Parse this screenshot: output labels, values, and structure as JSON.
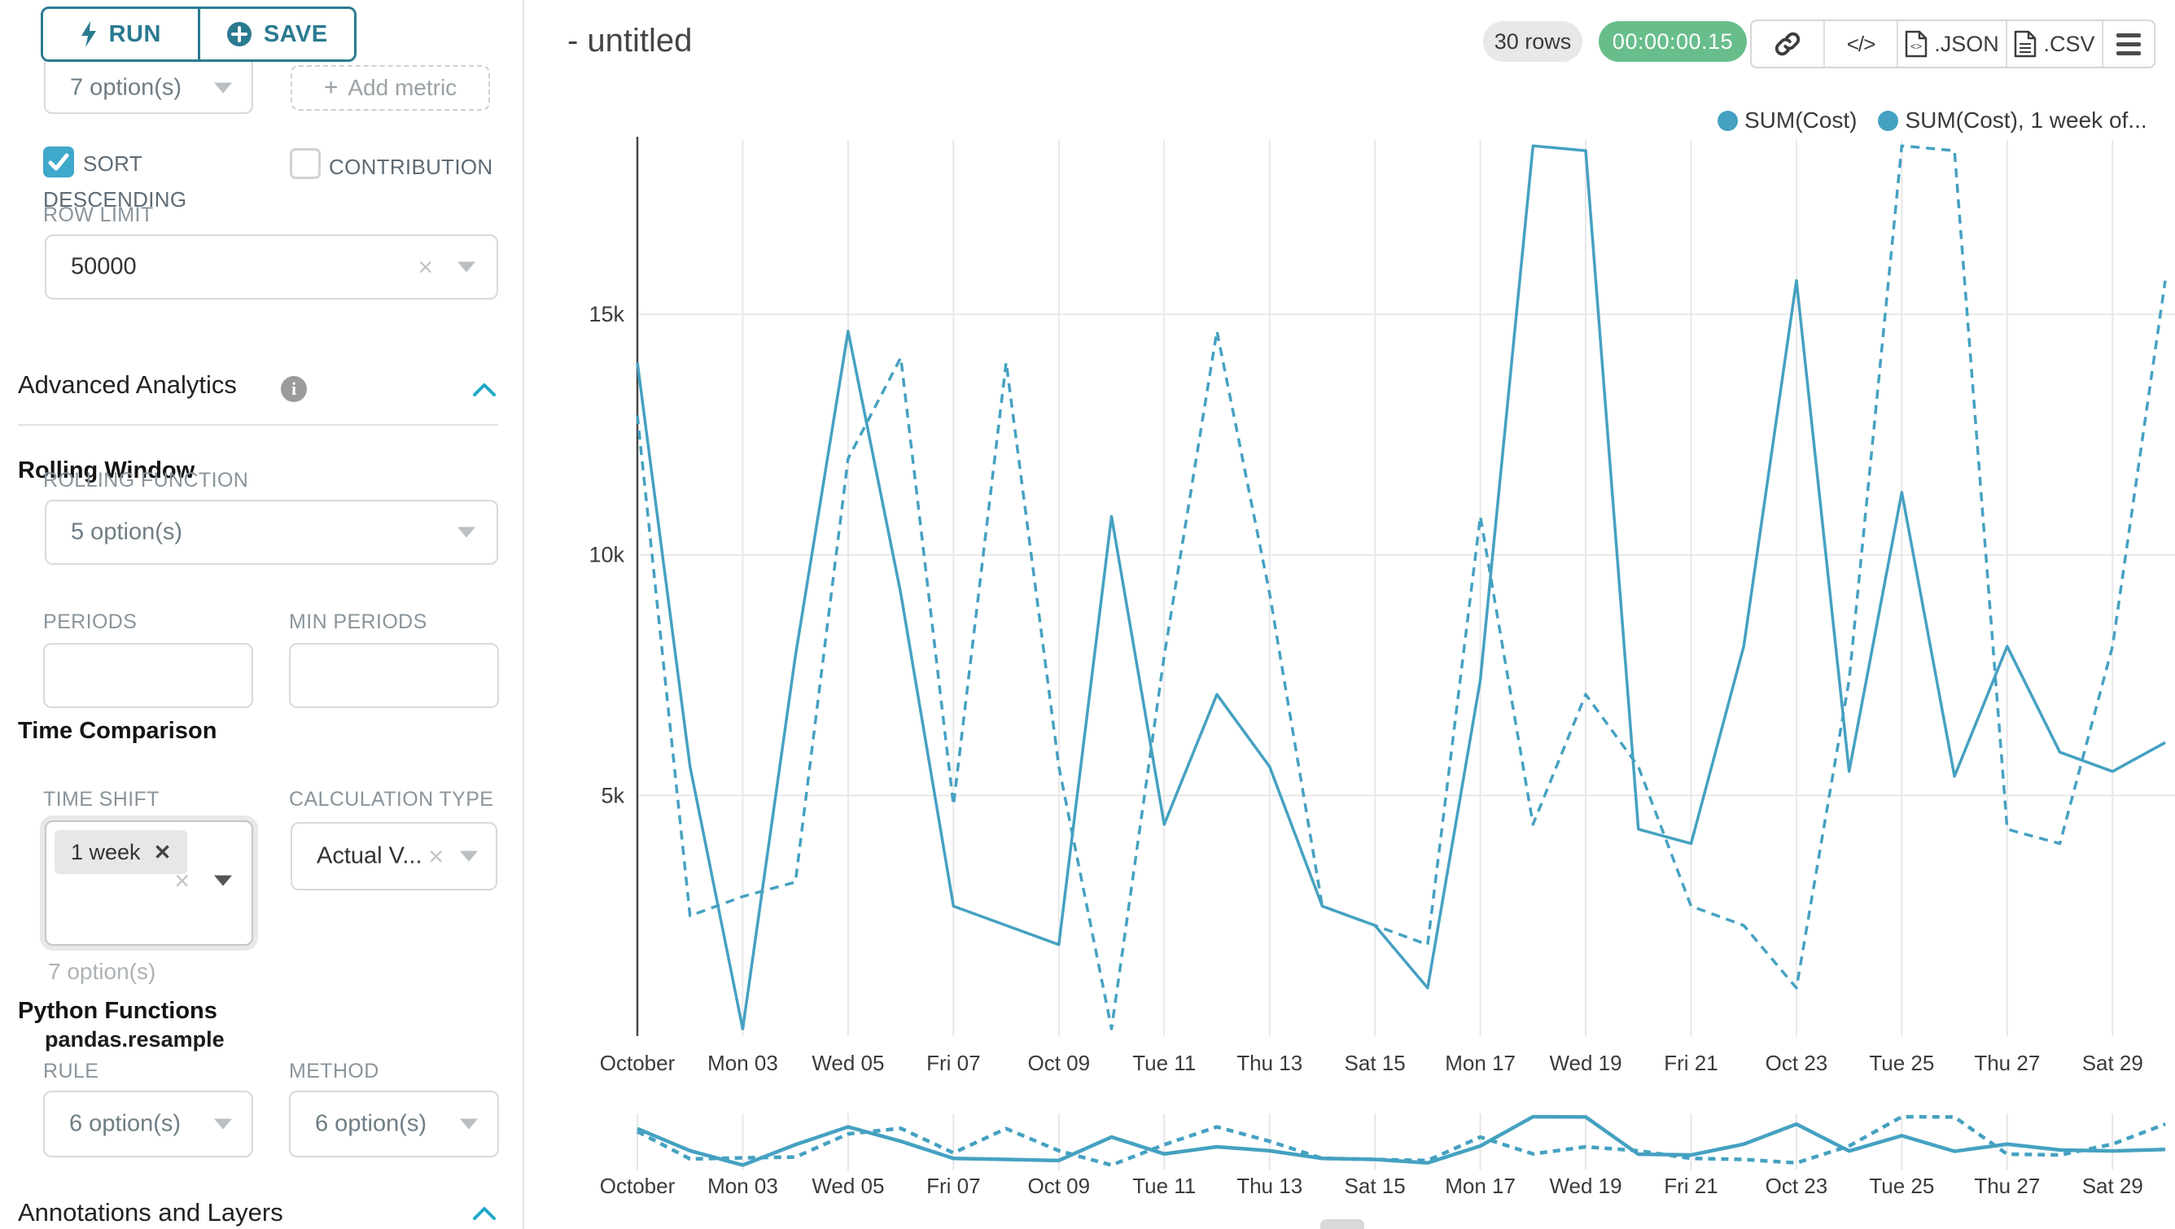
{
  "sidebar": {
    "run_label": "RUN",
    "save_label": "SAVE",
    "groupby_value": "7 option(s)",
    "add_metric_label": "Add metric",
    "sort_label_line1": "SORT",
    "sort_label_line2": "DESCENDING",
    "contribution_label": "CONTRIBUTION",
    "row_limit_label": "ROW LIMIT",
    "row_limit_value": "50000",
    "advanced_analytics_title": "Advanced Analytics",
    "rolling_window_title": "Rolling Window",
    "rolling_function_label": "ROLLING FUNCTION",
    "rolling_function_value": "5 option(s)",
    "periods_label": "PERIODS",
    "min_periods_label": "MIN PERIODS",
    "time_comparison_title": "Time Comparison",
    "time_shift_label": "TIME SHIFT",
    "time_shift_tag": "1 week",
    "time_shift_helper": "7 option(s)",
    "calculation_type_label": "CALCULATION TYPE",
    "calculation_type_value": "Actual V...",
    "python_functions_title": "Python Functions",
    "pandas_resample_label": "pandas.resample",
    "rule_label": "RULE",
    "rule_value": "6 option(s)",
    "method_label": "METHOD",
    "method_value": "6 option(s)",
    "annotations_title": "Annotations and Layers"
  },
  "header": {
    "title": "- untitled",
    "rows_badge": "30 rows",
    "timer": "00:00:00.15",
    "json_label": ".JSON",
    "csv_label": ".CSV"
  },
  "legend": [
    {
      "label": "SUM(Cost)"
    },
    {
      "label": "SUM(Cost), 1 week of..."
    }
  ],
  "colors": {
    "series": "#45a1c1",
    "accent": "#1fa8c9",
    "button_teal": "#2a7a90",
    "timer_green": "#68be8b",
    "grid": "#e8e8e8",
    "axis": "#474747",
    "tick_text": "#3b3b3b"
  },
  "chart_data": {
    "type": "line",
    "title": "- untitled",
    "x": [
      "Oct 01",
      "Oct 02",
      "Oct 03",
      "Oct 04",
      "Oct 05",
      "Oct 06",
      "Oct 07",
      "Oct 08",
      "Oct 09",
      "Oct 10",
      "Oct 11",
      "Oct 12",
      "Oct 13",
      "Oct 14",
      "Oct 15",
      "Oct 16",
      "Oct 17",
      "Oct 18",
      "Oct 19",
      "Oct 20",
      "Oct 21",
      "Oct 22",
      "Oct 23",
      "Oct 24",
      "Oct 25",
      "Oct 26",
      "Oct 27",
      "Oct 28",
      "Oct 29",
      "Oct 30"
    ],
    "x_tick_labels": [
      "October",
      "Mon 03",
      "Wed 05",
      "Fri 07",
      "Oct 09",
      "Tue 11",
      "Thu 13",
      "Sat 15",
      "Mon 17",
      "Wed 19",
      "Fri 21",
      "Oct 23",
      "Tue 25",
      "Thu 27",
      "Sat 29"
    ],
    "y_ticks": [
      {
        "v": 5000,
        "label": "5k"
      },
      {
        "v": 10000,
        "label": "10k"
      },
      {
        "v": 15000,
        "label": "15k"
      }
    ],
    "ylim": [
      0,
      18520
    ],
    "grid": true,
    "legend_position": "top-right",
    "has_preview_strip": true,
    "series": [
      {
        "name": "SUM(Cost)",
        "style": "solid",
        "values": [
          14000,
          5600,
          150,
          7900,
          14650,
          9200,
          2700,
          2300,
          1900,
          10800,
          4400,
          7100,
          5600,
          2700,
          2300,
          1000,
          7400,
          18500,
          18400,
          4300,
          4000,
          8100,
          15700,
          5500,
          11300,
          5400,
          8100,
          5900,
          5500,
          6100
        ]
      },
      {
        "name": "SUM(Cost), 1 week offset",
        "style": "dashed",
        "values": [
          12900,
          2500,
          2900,
          3200,
          12000,
          14100,
          4800,
          14000,
          5600,
          150,
          7900,
          14650,
          9200,
          2700,
          2300,
          1900,
          10800,
          4400,
          7100,
          5600,
          2700,
          2300,
          1000,
          7400,
          18500,
          18400,
          4300,
          4000,
          8100,
          15700
        ]
      }
    ]
  }
}
